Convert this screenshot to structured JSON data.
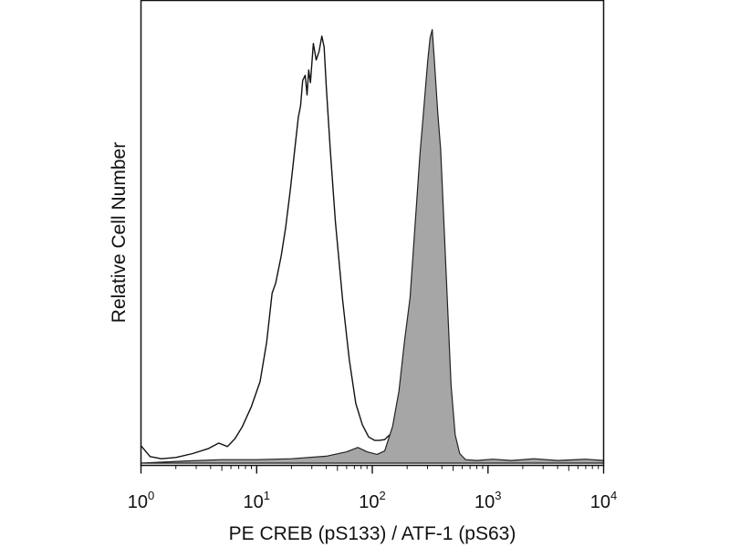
{
  "chart_data": {
    "type": "area",
    "title": "",
    "xlabel": "PE CREB (pS133) / ATF-1 (pS63)",
    "ylabel": "Relative Cell Number",
    "x_scale": "log",
    "xlim": [
      1,
      10000
    ],
    "ylim": [
      0,
      100
    ],
    "grid": false,
    "legend": "none",
    "x_ticks": [
      {
        "base": "10",
        "exp": "0",
        "value": 1
      },
      {
        "base": "10",
        "exp": "1",
        "value": 10
      },
      {
        "base": "10",
        "exp": "2",
        "value": 100
      },
      {
        "base": "10",
        "exp": "3",
        "value": 1000
      },
      {
        "base": "10",
        "exp": "4",
        "value": 10000
      }
    ],
    "series": [
      {
        "style": "outline",
        "color": "#111111",
        "points": [
          [
            1.0,
            4.0
          ],
          [
            1.2,
            1.5
          ],
          [
            1.5,
            1.0
          ],
          [
            2.0,
            1.3
          ],
          [
            2.8,
            2.2
          ],
          [
            3.8,
            3.3
          ],
          [
            4.7,
            4.6
          ],
          [
            5.6,
            3.8
          ],
          [
            6.5,
            5.6
          ],
          [
            7.5,
            8.3
          ],
          [
            9.0,
            13.0
          ],
          [
            10.7,
            18.7
          ],
          [
            12.2,
            27.7
          ],
          [
            13.6,
            39.0
          ],
          [
            14.6,
            41.3
          ],
          [
            16.3,
            47.5
          ],
          [
            17.8,
            54.0
          ],
          [
            19.6,
            63.0
          ],
          [
            21.5,
            72.7
          ],
          [
            22.9,
            79.3
          ],
          [
            24.0,
            82.0
          ],
          [
            25.0,
            87.8
          ],
          [
            26.3,
            89.0
          ],
          [
            27.3,
            84.5
          ],
          [
            28.2,
            90.2
          ],
          [
            29.2,
            87.3
          ],
          [
            30.9,
            96.3
          ],
          [
            32.7,
            92.5
          ],
          [
            34.7,
            94.5
          ],
          [
            36.6,
            98.0
          ],
          [
            38.3,
            95.5
          ],
          [
            40.0,
            86.3
          ],
          [
            43.3,
            72.0
          ],
          [
            48.0,
            55.3
          ],
          [
            55.4,
            37.4
          ],
          [
            63.3,
            23.7
          ],
          [
            72.0,
            13.7
          ],
          [
            82.0,
            8.8
          ],
          [
            93.0,
            6.0
          ],
          [
            105.0,
            5.2
          ],
          [
            115.0,
            5.2
          ],
          [
            128.0,
            5.4
          ],
          [
            140.0,
            6.4
          ],
          [
            158.0,
            5.3
          ],
          [
            178.0,
            4.2
          ],
          [
            220.0,
            2.0
          ],
          [
            290.0,
            0.8
          ],
          [
            420.0,
            0.4
          ],
          [
            650.0,
            0.3
          ],
          [
            1000.0,
            0.3
          ],
          [
            2000.0,
            0.2
          ],
          [
            5000.0,
            0.2
          ],
          [
            10000.0,
            0.2
          ]
        ]
      },
      {
        "style": "filled",
        "color": "#a6a6a6",
        "points": [
          [
            1.0,
            0.0
          ],
          [
            2.5,
            0.5
          ],
          [
            5.0,
            0.8
          ],
          [
            10.0,
            0.8
          ],
          [
            20.0,
            1.0
          ],
          [
            40.0,
            1.6
          ],
          [
            60.0,
            2.6
          ],
          [
            75.0,
            3.6
          ],
          [
            90.0,
            2.6
          ],
          [
            110.0,
            2.0
          ],
          [
            128.0,
            2.8
          ],
          [
            150.0,
            8.5
          ],
          [
            170.0,
            16.5
          ],
          [
            190.0,
            28.0
          ],
          [
            212.0,
            38.0
          ],
          [
            235.0,
            55.0
          ],
          [
            258.0,
            70.8
          ],
          [
            280.0,
            82.0
          ],
          [
            302.0,
            92.5
          ],
          [
            316.0,
            97.5
          ],
          [
            330.0,
            99.5
          ],
          [
            346.0,
            91.5
          ],
          [
            368.0,
            80.5
          ],
          [
            390.0,
            72.0
          ],
          [
            413.0,
            57.0
          ],
          [
            443.0,
            39.0
          ],
          [
            480.0,
            18.0
          ],
          [
            520.0,
            6.5
          ],
          [
            570.0,
            2.2
          ],
          [
            640.0,
            0.8
          ],
          [
            800.0,
            0.6
          ],
          [
            1100.0,
            0.9
          ],
          [
            1600.0,
            0.6
          ],
          [
            2500.0,
            1.0
          ],
          [
            4000.0,
            0.6
          ],
          [
            7000.0,
            0.9
          ],
          [
            10000.0,
            0.6
          ]
        ]
      }
    ]
  }
}
